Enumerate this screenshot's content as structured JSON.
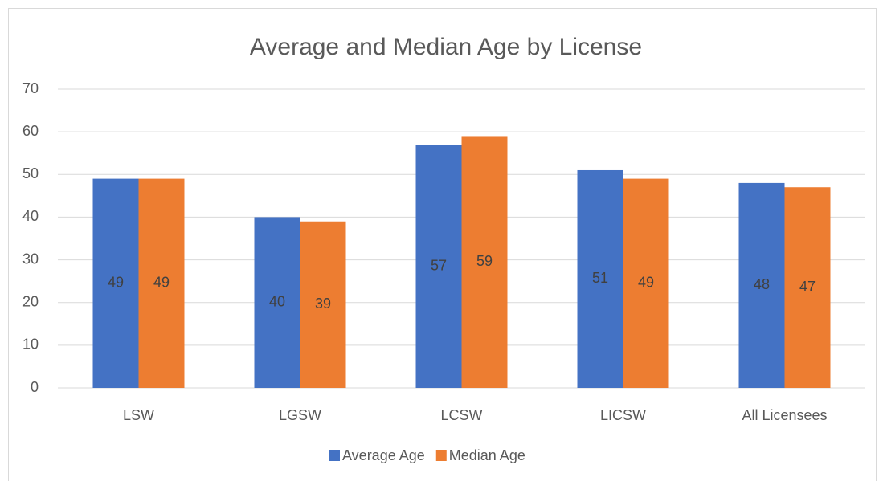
{
  "chart_data": {
    "type": "bar",
    "title": "Average and Median Age by License",
    "categories": [
      "LSW",
      "LGSW",
      "LCSW",
      "LICSW",
      "All Licensees"
    ],
    "series": [
      {
        "name": "Average Age",
        "color": "#4472c4",
        "values": [
          49,
          40,
          57,
          51,
          48
        ]
      },
      {
        "name": "Median Age",
        "color": "#ed7d31",
        "values": [
          49,
          39,
          59,
          49,
          47
        ]
      }
    ],
    "ylim": [
      0,
      70
    ],
    "yticks": [
      0,
      10,
      20,
      30,
      40,
      50,
      60,
      70
    ],
    "grid": true,
    "legend": "bottom"
  }
}
